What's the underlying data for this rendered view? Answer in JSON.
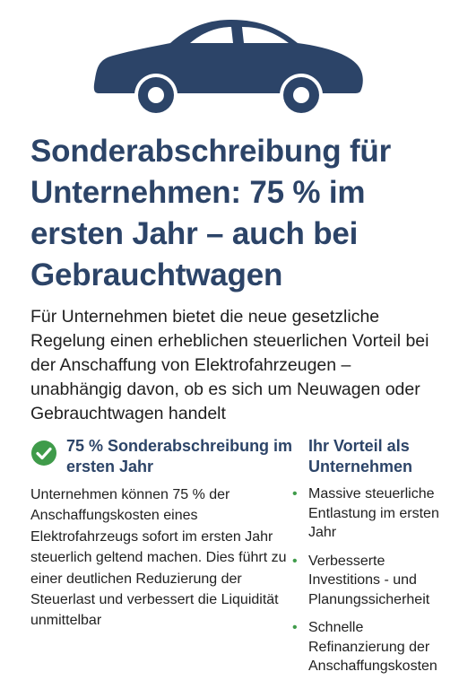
{
  "colors": {
    "navy": "#2c4468",
    "green": "#3f9b4a",
    "text": "#1f1f1f"
  },
  "icons": {
    "car": "car-icon",
    "check": "check-circle-icon",
    "bullet": "bullet-dot-icon"
  },
  "title": "Sonderabschreibung für Unternehmen: 75 % im ersten Jahr – auch bei Gebrauchtwagen",
  "intro": "Für Unternehmen bietet die neue gesetzliche Regelung einen erheblichen steuerlichen Vorteil bei der Anschaffung von Elektrofahrzeugen – unabhängig davon, ob es sich um Neuwagen oder Gebrauchtwagen handelt",
  "left": {
    "heading": "75 % Sonderabschreibung im ersten Jahr",
    "body": "Unternehmen können 75 % der Anschaffungskosten eines Elektrofahrzeugs sofort im ersten Jahr steuerlich geltend machen. Dies führt zu einer deutlichen Reduzierung der Steuerlast und verbessert die Liquidität unmittelbar"
  },
  "right": {
    "heading": "Ihr Vorteil als Unternehmen",
    "items": [
      {
        "bullet": "•",
        "text": "Massive steuerliche Entlastung im ersten Jahr"
      },
      {
        "bullet": "•",
        "text": "Verbesserte Investitions - und Planungssicherheit"
      },
      {
        "bullet": "•",
        "text": "Schnelle Refinanzierung der Anschaffungskosten"
      }
    ]
  }
}
